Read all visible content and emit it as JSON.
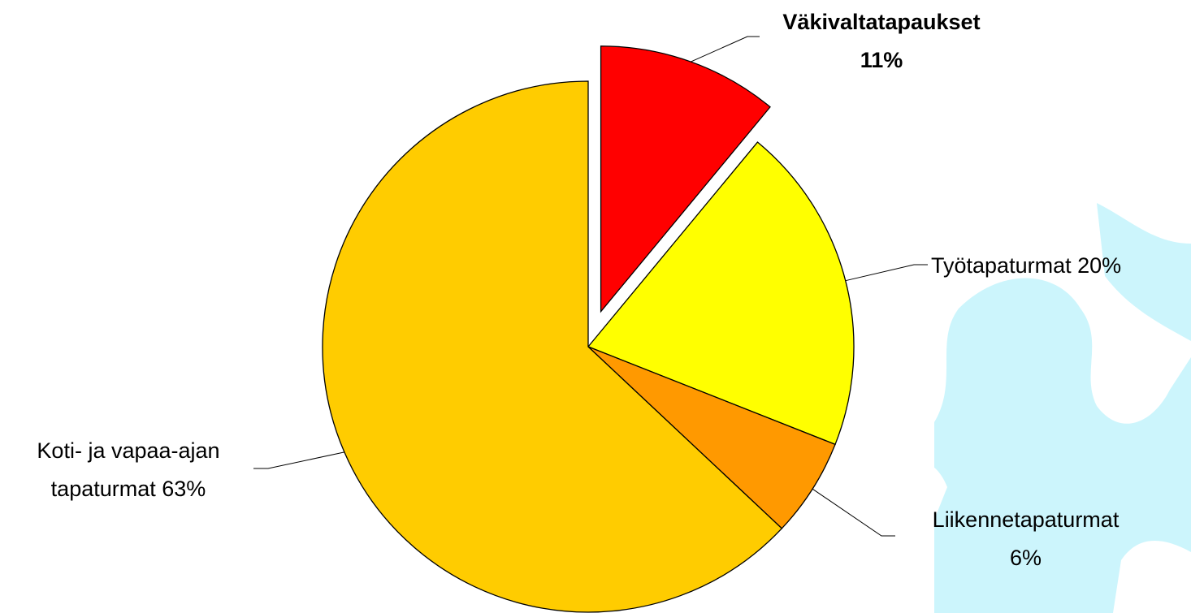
{
  "chart_data": {
    "type": "pie",
    "categories": [
      "Väkivaltatapaukset",
      "Työtapaturmat",
      "Liikennetapaturmat",
      "Koti- ja vapaa-ajan tapaturmat"
    ],
    "values": [
      11,
      20,
      6,
      63
    ],
    "value_labels": [
      "11%",
      "20%",
      "6%",
      "63%"
    ],
    "colors": [
      "#ff0000",
      "#ffff00",
      "#ff9900",
      "#ffcc00"
    ],
    "exploded": [
      0
    ]
  }
}
